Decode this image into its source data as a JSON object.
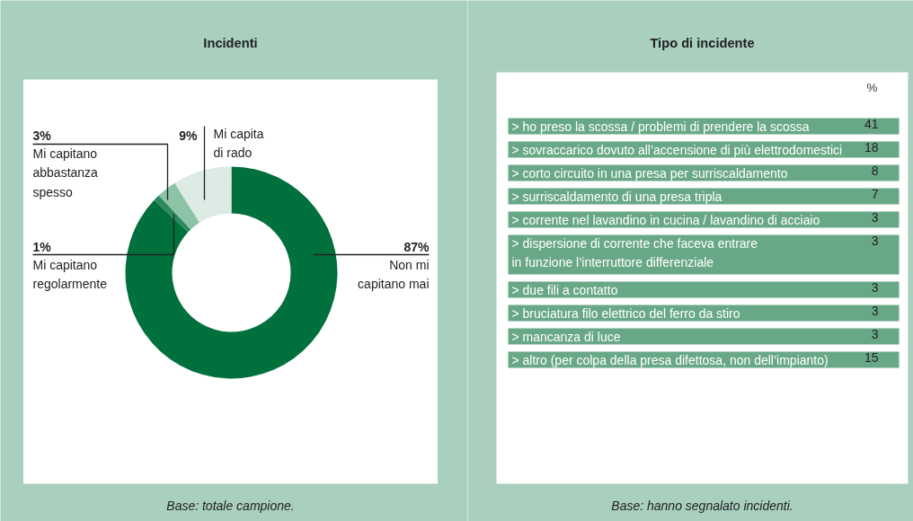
{
  "chart_data": [
    {
      "type": "donut",
      "title": "Incidenti",
      "categories": [
        "Non mi\ncapitano mai",
        "Mi capitano\nregolarmente",
        "Mi capitano\nabbastanza\nspesso",
        "Mi capita\ndi rado"
      ],
      "values": [
        87,
        1,
        3,
        9
      ],
      "value_labels": [
        "87%",
        "1%",
        "3%",
        "9%"
      ],
      "colors": [
        "#00703c",
        "#2a8a5e",
        "#8cc2a6",
        "#dcebe3"
      ],
      "annotations": [
        "Base: totale campione."
      ]
    },
    {
      "type": "other",
      "title": "Tipo di incidente",
      "ylabel": "%",
      "categories": [
        "> ho preso la scossa / problemi di prendere la scossa",
        "> sovraccarico dovuto all’accensione di più elettrodomestici",
        "> corto circuito in una presa per surriscaldamento",
        "> surriscaldamento di una presa tripla",
        "> corrente nel lavandino in cucina / lavandino di acciaio",
        "> dispersione di corrente che faceva entrare\n   in funzione l’interruttore differenziale",
        "> due fili a contatto",
        "> bruciatura filo elettrico del ferro da stiro",
        "> mancanza di luce",
        "> altro (per colpa della presa difettosa, non dell’impianto)"
      ],
      "values": [
        41,
        18,
        8,
        7,
        3,
        3,
        3,
        3,
        3,
        15
      ],
      "data_labels": true,
      "color": "#69a886",
      "annotations": [
        "Base: hanno segnalato incidenti."
      ]
    }
  ]
}
